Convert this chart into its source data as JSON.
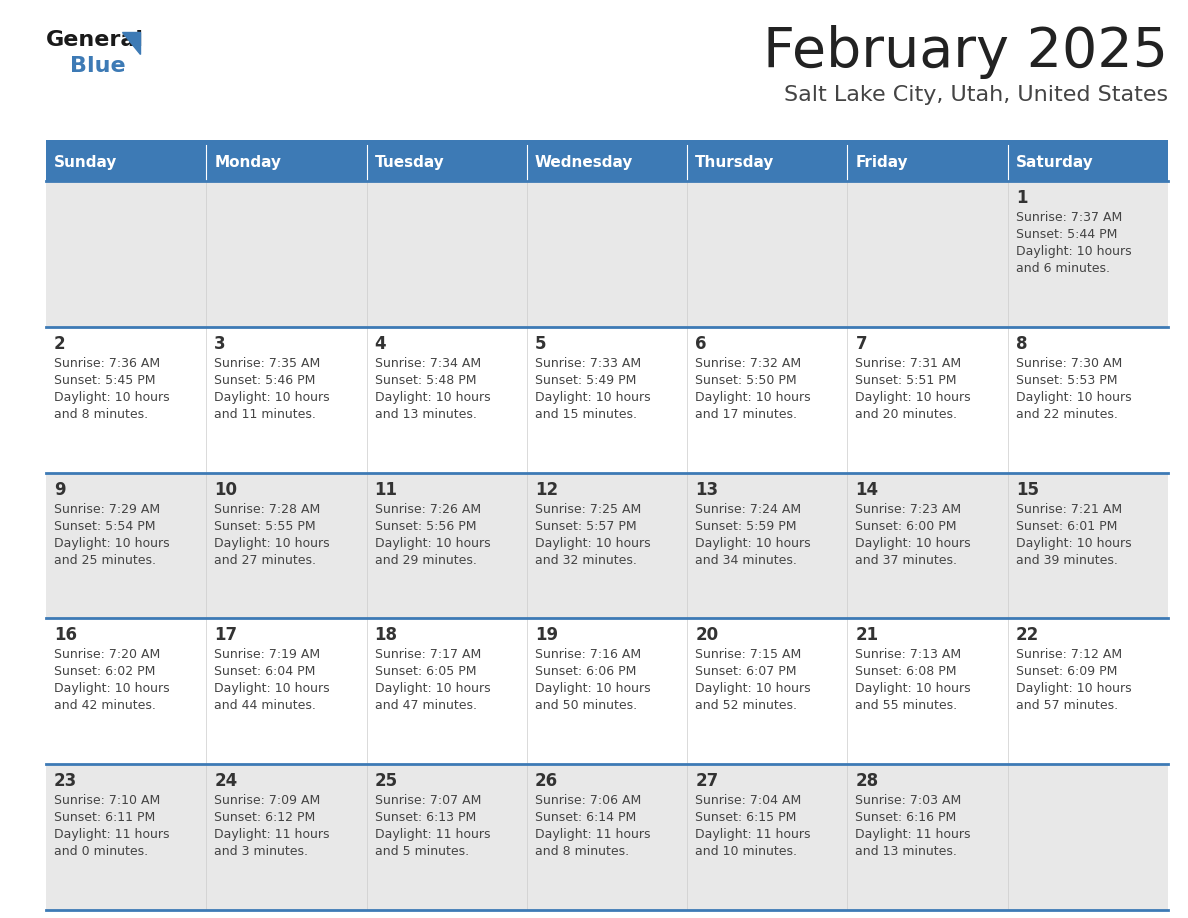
{
  "title": "February 2025",
  "subtitle": "Salt Lake City, Utah, United States",
  "header_bg": "#3d7ab5",
  "header_text": "#ffffff",
  "cell_top_bg": "#e8e8e8",
  "cell_body_bg": "#ffffff",
  "border_color": "#3d7ab5",
  "day_headers": [
    "Sunday",
    "Monday",
    "Tuesday",
    "Wednesday",
    "Thursday",
    "Friday",
    "Saturday"
  ],
  "title_color": "#222222",
  "subtitle_color": "#444444",
  "day_number_color": "#333333",
  "info_color": "#444444",
  "calendar": [
    [
      null,
      null,
      null,
      null,
      null,
      null,
      {
        "day": "1",
        "sunrise": "7:37 AM",
        "sunset": "5:44 PM",
        "daylight_h": "10 hours",
        "daylight_m": "and 6 minutes."
      }
    ],
    [
      {
        "day": "2",
        "sunrise": "7:36 AM",
        "sunset": "5:45 PM",
        "daylight_h": "10 hours",
        "daylight_m": "and 8 minutes."
      },
      {
        "day": "3",
        "sunrise": "7:35 AM",
        "sunset": "5:46 PM",
        "daylight_h": "10 hours",
        "daylight_m": "and 11 minutes."
      },
      {
        "day": "4",
        "sunrise": "7:34 AM",
        "sunset": "5:48 PM",
        "daylight_h": "10 hours",
        "daylight_m": "and 13 minutes."
      },
      {
        "day": "5",
        "sunrise": "7:33 AM",
        "sunset": "5:49 PM",
        "daylight_h": "10 hours",
        "daylight_m": "and 15 minutes."
      },
      {
        "day": "6",
        "sunrise": "7:32 AM",
        "sunset": "5:50 PM",
        "daylight_h": "10 hours",
        "daylight_m": "and 17 minutes."
      },
      {
        "day": "7",
        "sunrise": "7:31 AM",
        "sunset": "5:51 PM",
        "daylight_h": "10 hours",
        "daylight_m": "and 20 minutes."
      },
      {
        "day": "8",
        "sunrise": "7:30 AM",
        "sunset": "5:53 PM",
        "daylight_h": "10 hours",
        "daylight_m": "and 22 minutes."
      }
    ],
    [
      {
        "day": "9",
        "sunrise": "7:29 AM",
        "sunset": "5:54 PM",
        "daylight_h": "10 hours",
        "daylight_m": "and 25 minutes."
      },
      {
        "day": "10",
        "sunrise": "7:28 AM",
        "sunset": "5:55 PM",
        "daylight_h": "10 hours",
        "daylight_m": "and 27 minutes."
      },
      {
        "day": "11",
        "sunrise": "7:26 AM",
        "sunset": "5:56 PM",
        "daylight_h": "10 hours",
        "daylight_m": "and 29 minutes."
      },
      {
        "day": "12",
        "sunrise": "7:25 AM",
        "sunset": "5:57 PM",
        "daylight_h": "10 hours",
        "daylight_m": "and 32 minutes."
      },
      {
        "day": "13",
        "sunrise": "7:24 AM",
        "sunset": "5:59 PM",
        "daylight_h": "10 hours",
        "daylight_m": "and 34 minutes."
      },
      {
        "day": "14",
        "sunrise": "7:23 AM",
        "sunset": "6:00 PM",
        "daylight_h": "10 hours",
        "daylight_m": "and 37 minutes."
      },
      {
        "day": "15",
        "sunrise": "7:21 AM",
        "sunset": "6:01 PM",
        "daylight_h": "10 hours",
        "daylight_m": "and 39 minutes."
      }
    ],
    [
      {
        "day": "16",
        "sunrise": "7:20 AM",
        "sunset": "6:02 PM",
        "daylight_h": "10 hours",
        "daylight_m": "and 42 minutes."
      },
      {
        "day": "17",
        "sunrise": "7:19 AM",
        "sunset": "6:04 PM",
        "daylight_h": "10 hours",
        "daylight_m": "and 44 minutes."
      },
      {
        "day": "18",
        "sunrise": "7:17 AM",
        "sunset": "6:05 PM",
        "daylight_h": "10 hours",
        "daylight_m": "and 47 minutes."
      },
      {
        "day": "19",
        "sunrise": "7:16 AM",
        "sunset": "6:06 PM",
        "daylight_h": "10 hours",
        "daylight_m": "and 50 minutes."
      },
      {
        "day": "20",
        "sunrise": "7:15 AM",
        "sunset": "6:07 PM",
        "daylight_h": "10 hours",
        "daylight_m": "and 52 minutes."
      },
      {
        "day": "21",
        "sunrise": "7:13 AM",
        "sunset": "6:08 PM",
        "daylight_h": "10 hours",
        "daylight_m": "and 55 minutes."
      },
      {
        "day": "22",
        "sunrise": "7:12 AM",
        "sunset": "6:09 PM",
        "daylight_h": "10 hours",
        "daylight_m": "and 57 minutes."
      }
    ],
    [
      {
        "day": "23",
        "sunrise": "7:10 AM",
        "sunset": "6:11 PM",
        "daylight_h": "11 hours",
        "daylight_m": "and 0 minutes."
      },
      {
        "day": "24",
        "sunrise": "7:09 AM",
        "sunset": "6:12 PM",
        "daylight_h": "11 hours",
        "daylight_m": "and 3 minutes."
      },
      {
        "day": "25",
        "sunrise": "7:07 AM",
        "sunset": "6:13 PM",
        "daylight_h": "11 hours",
        "daylight_m": "and 5 minutes."
      },
      {
        "day": "26",
        "sunrise": "7:06 AM",
        "sunset": "6:14 PM",
        "daylight_h": "11 hours",
        "daylight_m": "and 8 minutes."
      },
      {
        "day": "27",
        "sunrise": "7:04 AM",
        "sunset": "6:15 PM",
        "daylight_h": "11 hours",
        "daylight_m": "and 10 minutes."
      },
      {
        "day": "28",
        "sunrise": "7:03 AM",
        "sunset": "6:16 PM",
        "daylight_h": "11 hours",
        "daylight_m": "and 13 minutes."
      },
      null
    ]
  ],
  "fig_width": 11.88,
  "fig_height": 9.18,
  "dpi": 100
}
